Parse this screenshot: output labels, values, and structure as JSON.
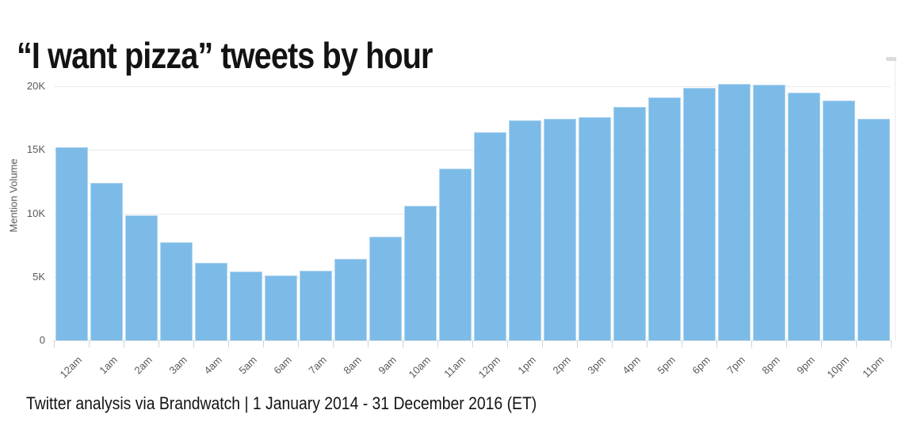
{
  "page": {
    "title": "“I want pizza” tweets by hour",
    "caption": "Twitter analysis via Brandwatch | 1 January 2014 - 31 December 2016 (ET)"
  },
  "chart_data": {
    "type": "bar",
    "title": "“I want pizza” tweets by hour",
    "xlabel": "",
    "ylabel": "Mention Volume",
    "categories": [
      "12am",
      "1am",
      "2am",
      "3am",
      "4am",
      "5am",
      "6am",
      "7am",
      "8am",
      "9am",
      "10am",
      "11am",
      "12pm",
      "1pm",
      "2pm",
      "3pm",
      "4pm",
      "5pm",
      "6pm",
      "7pm",
      "8pm",
      "9pm",
      "10pm",
      "11pm"
    ],
    "values": [
      15200,
      12400,
      9850,
      7700,
      6100,
      5400,
      5100,
      5500,
      6400,
      8150,
      10600,
      13550,
      16400,
      17300,
      17450,
      17550,
      18400,
      19100,
      19900,
      20200,
      20100,
      19500,
      18850,
      17450
    ],
    "yticks": [
      {
        "value": 0,
        "label": "0"
      },
      {
        "value": 5000,
        "label": "5K"
      },
      {
        "value": 10000,
        "label": "10K"
      },
      {
        "value": 15000,
        "label": "15K"
      },
      {
        "value": 20000,
        "label": "20K"
      }
    ],
    "ylim": [
      0,
      21500
    ],
    "grid": "horizontal",
    "legend": "none",
    "colors": {
      "bar_fill": "#7cbbe8",
      "bar_border": "#b3d6f1",
      "gridline": "#e9e9e9",
      "axis_line": "#d9dee4",
      "axis_tick": "#c2d6ec",
      "axis_text": "#55585d",
      "title_text": "#131313",
      "caption_text": "#131313"
    }
  }
}
